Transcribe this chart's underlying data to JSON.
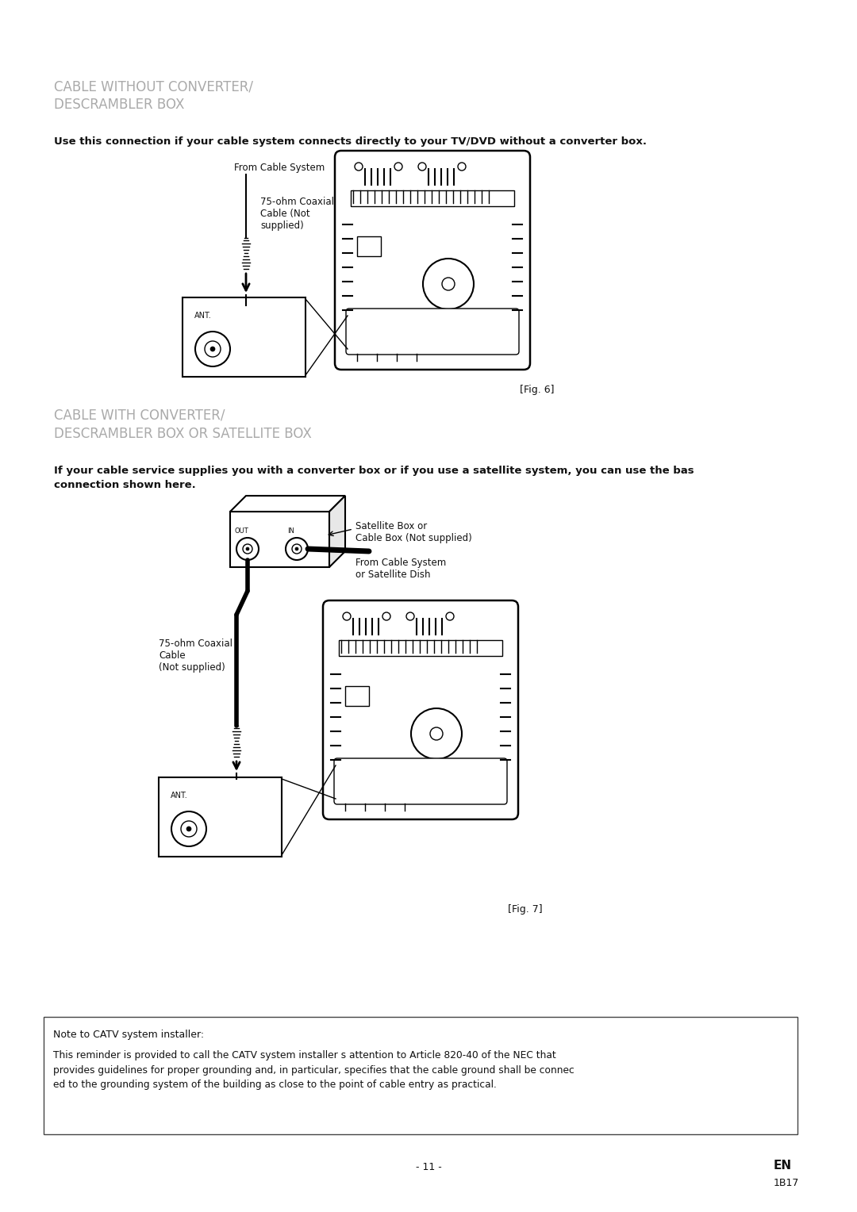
{
  "bg_color": "#ffffff",
  "title1": "CABLE WITHOUT CONVERTER/\nDESCRAMBLER BOX",
  "title2": "CABLE WITH CONVERTER/\nDESCRAMBLER BOX OR SATELLITE BOX",
  "title_color": "#aaaaaa",
  "title_fontsize": 12,
  "body_text1": "Use this connection if your cable system connects directly to your TV/DVD without a converter box.",
  "body_text2": "If your cable service supplies you with a converter box or if you use a satellite system, you can use the bas\nconnection shown here.",
  "body_fontsize": 9.5,
  "fig6_label": "[Fig. 6]",
  "fig7_label": "[Fig. 7]",
  "label_from_cable": "From Cable System",
  "label_75ohm1": "75-ohm Coaxial\nCable (Not\nsupplied)",
  "label_75ohm2": "75-ohm Coaxial\nCable\n(Not supplied)",
  "label_ant": "ANT.",
  "label_satellite": "Satellite Box or\nCable Box (Not supplied)",
  "label_from_cable2": "From Cable System\nor Satellite Dish",
  "label_ant2": "ANT.",
  "label_out": "OUT",
  "label_in": "IN",
  "note_title": "Note to CATV system installer:",
  "note_body": "This reminder is provided to call the CATV system installer s attention to Article 820-40 of the NEC that\nprovides guidelines for proper grounding and, in particular, specifies that the cable ground shall be connec\ned to the grounding system of the building as close to the point of cable entry as practical.",
  "page_num": "- 11 -",
  "page_lang": "EN",
  "page_code": "1B17"
}
